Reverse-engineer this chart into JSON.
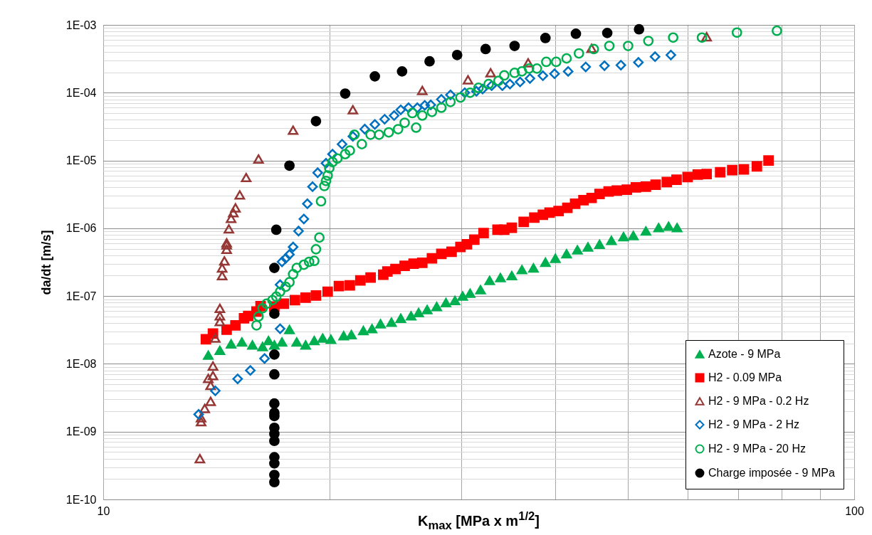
{
  "chart_data": {
    "type": "scatter",
    "xlabel": "K$_{max}$  [MPa x m$^{1/2}$]",
    "ylabel": "da/dt [m/s]",
    "log": "xy",
    "grid": true,
    "legend": "bottom right",
    "xlim": [
      10,
      100
    ],
    "ylim": [
      1e-10,
      0.001
    ],
    "xticks": [
      10,
      {
        "value": 20,
        "label": null
      },
      {
        "value": 30,
        "label": null
      },
      {
        "value": 40,
        "label": null
      },
      {
        "value": 50,
        "label": null
      },
      {
        "value": 60,
        "label": null
      },
      {
        "value": 70,
        "label": null
      },
      {
        "value": 80,
        "label": null
      },
      {
        "value": 90,
        "label": null
      },
      100
    ],
    "yticks": [
      {
        "value": 1e-10,
        "label": "1E-10"
      },
      {
        "value": 2e-10,
        "label": null
      },
      {
        "value": 3e-10,
        "label": null
      },
      {
        "value": 4e-10,
        "label": null
      },
      {
        "value": 5e-10,
        "label": null
      },
      {
        "value": 6e-10,
        "label": null
      },
      {
        "value": 7e-10,
        "label": null
      },
      {
        "value": 8e-10,
        "label": null
      },
      {
        "value": 9e-10,
        "label": null
      },
      {
        "value": 1e-09,
        "label": "1E-09"
      },
      {
        "value": 2e-09,
        "label": null
      },
      {
        "value": 3e-09,
        "label": null
      },
      {
        "value": 4e-09,
        "label": null
      },
      {
        "value": 5e-09,
        "label": null
      },
      {
        "value": 6e-09,
        "label": null
      },
      {
        "value": 7e-09,
        "label": null
      },
      {
        "value": 8e-09,
        "label": null
      },
      {
        "value": 9e-09,
        "label": null
      },
      {
        "value": 1e-08,
        "label": "1E-08"
      },
      {
        "value": 2e-08,
        "label": null
      },
      {
        "value": 3e-08,
        "label": null
      },
      {
        "value": 4e-08,
        "label": null
      },
      {
        "value": 5e-08,
        "label": null
      },
      {
        "value": 6e-08,
        "label": null
      },
      {
        "value": 7e-08,
        "label": null
      },
      {
        "value": 8e-08,
        "label": null
      },
      {
        "value": 9e-08,
        "label": null
      },
      {
        "value": 1e-07,
        "label": "1E-07"
      },
      {
        "value": 2e-07,
        "label": null
      },
      {
        "value": 3e-07,
        "label": null
      },
      {
        "value": 4e-07,
        "label": null
      },
      {
        "value": 5e-07,
        "label": null
      },
      {
        "value": 6e-07,
        "label": null
      },
      {
        "value": 7e-07,
        "label": null
      },
      {
        "value": 8e-07,
        "label": null
      },
      {
        "value": 9e-07,
        "label": null
      },
      {
        "value": 1e-06,
        "label": "1E-06"
      },
      {
        "value": 2e-06,
        "label": null
      },
      {
        "value": 3e-06,
        "label": null
      },
      {
        "value": 4e-06,
        "label": null
      },
      {
        "value": 5e-06,
        "label": null
      },
      {
        "value": 6e-06,
        "label": null
      },
      {
        "value": 7e-06,
        "label": null
      },
      {
        "value": 8e-06,
        "label": null
      },
      {
        "value": 9e-06,
        "label": null
      },
      {
        "value": 1e-05,
        "label": "1E-05"
      },
      {
        "value": 2e-05,
        "label": null
      },
      {
        "value": 3e-05,
        "label": null
      },
      {
        "value": 4e-05,
        "label": null
      },
      {
        "value": 5e-05,
        "label": null
      },
      {
        "value": 6e-05,
        "label": null
      },
      {
        "value": 7e-05,
        "label": null
      },
      {
        "value": 8e-05,
        "label": null
      },
      {
        "value": 9e-05,
        "label": null
      },
      {
        "value": 0.0001,
        "label": "1E-04"
      },
      {
        "value": 0.0002,
        "label": null
      },
      {
        "value": 0.0003,
        "label": null
      },
      {
        "value": 0.0004,
        "label": null
      },
      {
        "value": 0.0005,
        "label": null
      },
      {
        "value": 0.0006,
        "label": null
      },
      {
        "value": 0.0007,
        "label": null
      },
      {
        "value": 0.0008,
        "label": null
      },
      {
        "value": 0.0009,
        "label": null
      },
      {
        "value": 0.001,
        "label": "1E-03"
      }
    ],
    "series": [
      {
        "name": "Azote - 9 MPa",
        "color": "#00b050",
        "marker": "triangle",
        "x": [
          13.8,
          14.3,
          14.8,
          15.3,
          15.8,
          16.3,
          16.6,
          16.9,
          17.3,
          17.7,
          18.1,
          18.6,
          19.1,
          19.6,
          20.1,
          20.9,
          21.4,
          22.2,
          22.8,
          23.4,
          24.2,
          24.9,
          25.7,
          26.3,
          27.0,
          27.8,
          28.6,
          29.4,
          30.1,
          30.8,
          31.8,
          32.7,
          33.8,
          35.0,
          36.1,
          37.4,
          38.8,
          40.0,
          41.4,
          42.8,
          44.2,
          45.8,
          47.5,
          49.3,
          50.8,
          52.8,
          54.9,
          56.6,
          58.1
        ],
        "values": [
          1.34e-08,
          1.58e-08,
          1.97e-08,
          2.1e-08,
          1.9e-08,
          1.8e-08,
          2.2e-08,
          1.9e-08,
          2.1e-08,
          3.2e-08,
          2.1e-08,
          1.9e-08,
          2.2e-08,
          2.4e-08,
          2.3e-08,
          2.6e-08,
          2.7e-08,
          3.1e-08,
          3.3e-08,
          3.9e-08,
          4.1e-08,
          4.7e-08,
          5.1e-08,
          5.7e-08,
          6.3e-08,
          7e-08,
          8e-08,
          8.6e-08,
          1e-07,
          1.1e-07,
          1.24e-07,
          1.7e-07,
          1.87e-07,
          2e-07,
          2.45e-07,
          2.6e-07,
          3.15e-07,
          3.6e-07,
          4.2e-07,
          4.8e-07,
          5.3e-07,
          5.8e-07,
          6.6e-07,
          7.5e-07,
          7.8e-07,
          9.1e-07,
          1.02e-06,
          1.07e-06,
          1.02e-06
        ]
      },
      {
        "name": "H2 - 0.09 MPa",
        "color": "#ff0000",
        "marker": "square",
        "x": [
          13.7,
          14.0,
          14.6,
          15.0,
          15.4,
          15.6,
          16.0,
          16.2,
          16.9,
          17.4,
          18.0,
          18.6,
          19.2,
          19.9,
          20.6,
          21.3,
          22.0,
          22.7,
          23.6,
          23.9,
          24.5,
          25.2,
          25.9,
          26.6,
          27.4,
          28.2,
          29.1,
          29.9,
          30.5,
          31.2,
          32.1,
          33.5,
          34.2,
          35.0,
          36.3,
          37.5,
          38.5,
          39.3,
          40.4,
          41.5,
          42.5,
          43.6,
          44.7,
          45.8,
          47.1,
          48.3,
          49.8,
          51.2,
          52.8,
          54.4,
          56.3,
          58.0,
          60.0,
          61.9,
          63.6,
          66.3,
          68.8,
          71.3,
          74.2,
          76.9
        ],
        "values": [
          2.3e-08,
          2.8e-08,
          3.2e-08,
          3.7e-08,
          4.7e-08,
          5.1e-08,
          5.9e-08,
          7.1e-08,
          7e-08,
          7.7e-08,
          8.7e-08,
          9.5e-08,
          1.02e-07,
          1.16e-07,
          1.4e-07,
          1.44e-07,
          1.7e-07,
          1.87e-07,
          2.06e-07,
          2.3e-07,
          2.5e-07,
          2.8e-07,
          3e-07,
          3.1e-07,
          3.6e-07,
          4.2e-07,
          4.5e-07,
          5.3e-07,
          5.8e-07,
          6.8e-07,
          8.5e-07,
          9.5e-07,
          9.5e-07,
          1.02e-06,
          1.24e-06,
          1.44e-06,
          1.58e-06,
          1.7e-06,
          1.8e-06,
          2e-06,
          2.3e-06,
          2.6e-06,
          2.8e-06,
          3.2e-06,
          3.5e-06,
          3.6e-06,
          3.7e-06,
          4e-06,
          4.1e-06,
          4.4e-06,
          4.8e-06,
          5.2e-06,
          5.7e-06,
          6.2e-06,
          6.3e-06,
          6.7e-06,
          7.2e-06,
          7.4e-06,
          8.2e-06,
          1e-05
        ]
      },
      {
        "name": "H2 - 9 MPa - 0.2 Hz",
        "color": "#953735",
        "marker": "triangle",
        "x": [
          13.45,
          13.5,
          13.5,
          13.65,
          13.9,
          13.9,
          13.8,
          14.0,
          14.0,
          14.1,
          14.3,
          14.3,
          14.3,
          14.4,
          14.4,
          14.5,
          14.6,
          14.6,
          14.6,
          14.7,
          14.8,
          14.9,
          15.0,
          15.2,
          15.5,
          16.1,
          17.9,
          21.5,
          26.6,
          30.6,
          32.8,
          36.8,
          44.7,
          63.6
        ],
        "values": [
          4e-10,
          1.4e-09,
          1.6e-09,
          2.2e-09,
          2.8e-09,
          4.8e-09,
          6.1e-09,
          6.7e-09,
          9.3e-09,
          2.4e-08,
          4.2e-08,
          5.1e-08,
          6.6e-08,
          2e-07,
          2.6e-07,
          3.3e-07,
          4.9e-07,
          5.7e-07,
          6.1e-07,
          9.8e-07,
          1.4e-06,
          1.7e-06,
          2e-06,
          3.1e-06,
          5.6e-06,
          1.05e-05,
          2.8e-05,
          5.6e-05,
          0.000108,
          0.000155,
          0.000197,
          0.000276,
          0.00045,
          0.00067
        ]
      },
      {
        "name": "H2 - 9 MPa - 2 Hz",
        "color": "#0070c0",
        "marker": "diamond",
        "x": [
          13.4,
          14.1,
          15.1,
          15.7,
          16.4,
          17.2,
          17.2,
          17.3,
          17.5,
          17.7,
          17.9,
          18.2,
          18.5,
          18.7,
          19.0,
          19.3,
          19.8,
          20.2,
          20.8,
          21.5,
          22.3,
          23.0,
          23.7,
          24.4,
          24.9,
          25.5,
          26.2,
          26.8,
          27.3,
          28.2,
          29.0,
          30.3,
          31.4,
          32.0,
          32.9,
          34.0,
          34.8,
          35.9,
          37.0,
          38.5,
          39.9,
          41.6,
          43.9,
          46.5,
          48.9,
          51.6,
          54.3,
          57.0
        ],
        "values": [
          1.8e-09,
          4e-09,
          6e-09,
          8e-09,
          1.2e-08,
          3.3e-08,
          1.47e-07,
          3.2e-07,
          3.6e-07,
          4.1e-07,
          5.3e-07,
          9.1e-07,
          1.37e-06,
          2.3e-06,
          4.1e-06,
          6.6e-06,
          9.1e-06,
          1.24e-05,
          1.74e-05,
          2.27e-05,
          2.9e-05,
          3.4e-05,
          4.06e-05,
          4.6e-05,
          5.6e-05,
          6e-05,
          6e-05,
          6.5e-05,
          6.6e-05,
          8e-05,
          9.3e-05,
          0.0001,
          0.000105,
          0.000113,
          0.000127,
          0.000127,
          0.000134,
          0.000144,
          0.000162,
          0.000178,
          0.00019,
          0.000206,
          0.00024,
          0.00025,
          0.000255,
          0.00028,
          0.00034,
          0.00036
        ]
      },
      {
        "name": "H2 - 9 MPa - 20 Hz",
        "color": "#00b050",
        "marker": "circle",
        "x": [
          16.0,
          16.1,
          16.3,
          16.5,
          16.8,
          17.0,
          17.2,
          17.5,
          17.7,
          17.9,
          18.1,
          18.5,
          18.8,
          19.1,
          19.2,
          19.4,
          19.5,
          19.7,
          19.8,
          19.9,
          20.0,
          20.2,
          20.5,
          21.0,
          21.3,
          22.1,
          21.6,
          22.7,
          23.3,
          24.0,
          24.7,
          25.2,
          26.1,
          25.8,
          26.6,
          27.4,
          28.2,
          29.0,
          29.9,
          30.8,
          31.6,
          32.6,
          33.6,
          34.2,
          35.3,
          36.1,
          36.9,
          37.8,
          38.9,
          40.1,
          41.4,
          43.0,
          45.0,
          47.2,
          50.0,
          53.2,
          57.4,
          62.7,
          69.8,
          78.9
        ],
        "values": [
          3.7e-08,
          5e-08,
          6.6e-08,
          7.7e-08,
          8.7e-08,
          9.8e-08,
          1.16e-07,
          1.37e-07,
          1.6e-07,
          2.1e-07,
          2.6e-07,
          2.9e-07,
          3.2e-07,
          3.3e-07,
          4.9e-07,
          7.3e-07,
          2.5e-06,
          4.2e-06,
          5e-06,
          6e-06,
          7.7e-06,
          9.5e-06,
          1.07e-05,
          1.24e-05,
          1.4e-05,
          1.74e-05,
          2.4e-05,
          2.4e-05,
          2.4e-05,
          2.6e-05,
          2.9e-05,
          3.6e-05,
          3.05e-05,
          5e-05,
          4.6e-05,
          5.2e-05,
          6e-05,
          7.3e-05,
          8.5e-05,
          0.0001,
          0.000118,
          0.000134,
          0.00015,
          0.00018,
          0.000196,
          0.000206,
          0.000227,
          0.000227,
          0.000285,
          0.000285,
          0.00032,
          0.00038,
          0.00044,
          0.00049,
          0.00049,
          0.00058,
          0.00065,
          0.00065,
          0.00077,
          0.00082
        ]
      },
      {
        "name": "Charge imposée - 9 MPa",
        "color": "#000000",
        "marker": "circle",
        "x": [
          16.9,
          16.9,
          16.9,
          16.9,
          16.9,
          16.9,
          16.9,
          16.9,
          16.9,
          16.9,
          16.9,
          16.9,
          16.9,
          16.9,
          17.0,
          17.7,
          19.2,
          21.0,
          23.0,
          25.0,
          27.2,
          29.6,
          32.3,
          35.3,
          38.8,
          42.6,
          46.9,
          51.7
        ],
        "values": [
          1.8e-10,
          2.3e-10,
          3.4e-10,
          4.2e-10,
          7.3e-10,
          9.3e-10,
          1.14e-09,
          1.7e-09,
          1.9e-09,
          2.6e-09,
          7e-09,
          1.37e-08,
          5.5e-08,
          2.6e-07,
          9.5e-07,
          8.4e-06,
          3.8e-05,
          9.7e-05,
          0.000174,
          0.000206,
          0.00029,
          0.00036,
          0.00044,
          0.00049,
          0.00064,
          0.00074,
          0.00076,
          0.00086
        ]
      }
    ]
  }
}
